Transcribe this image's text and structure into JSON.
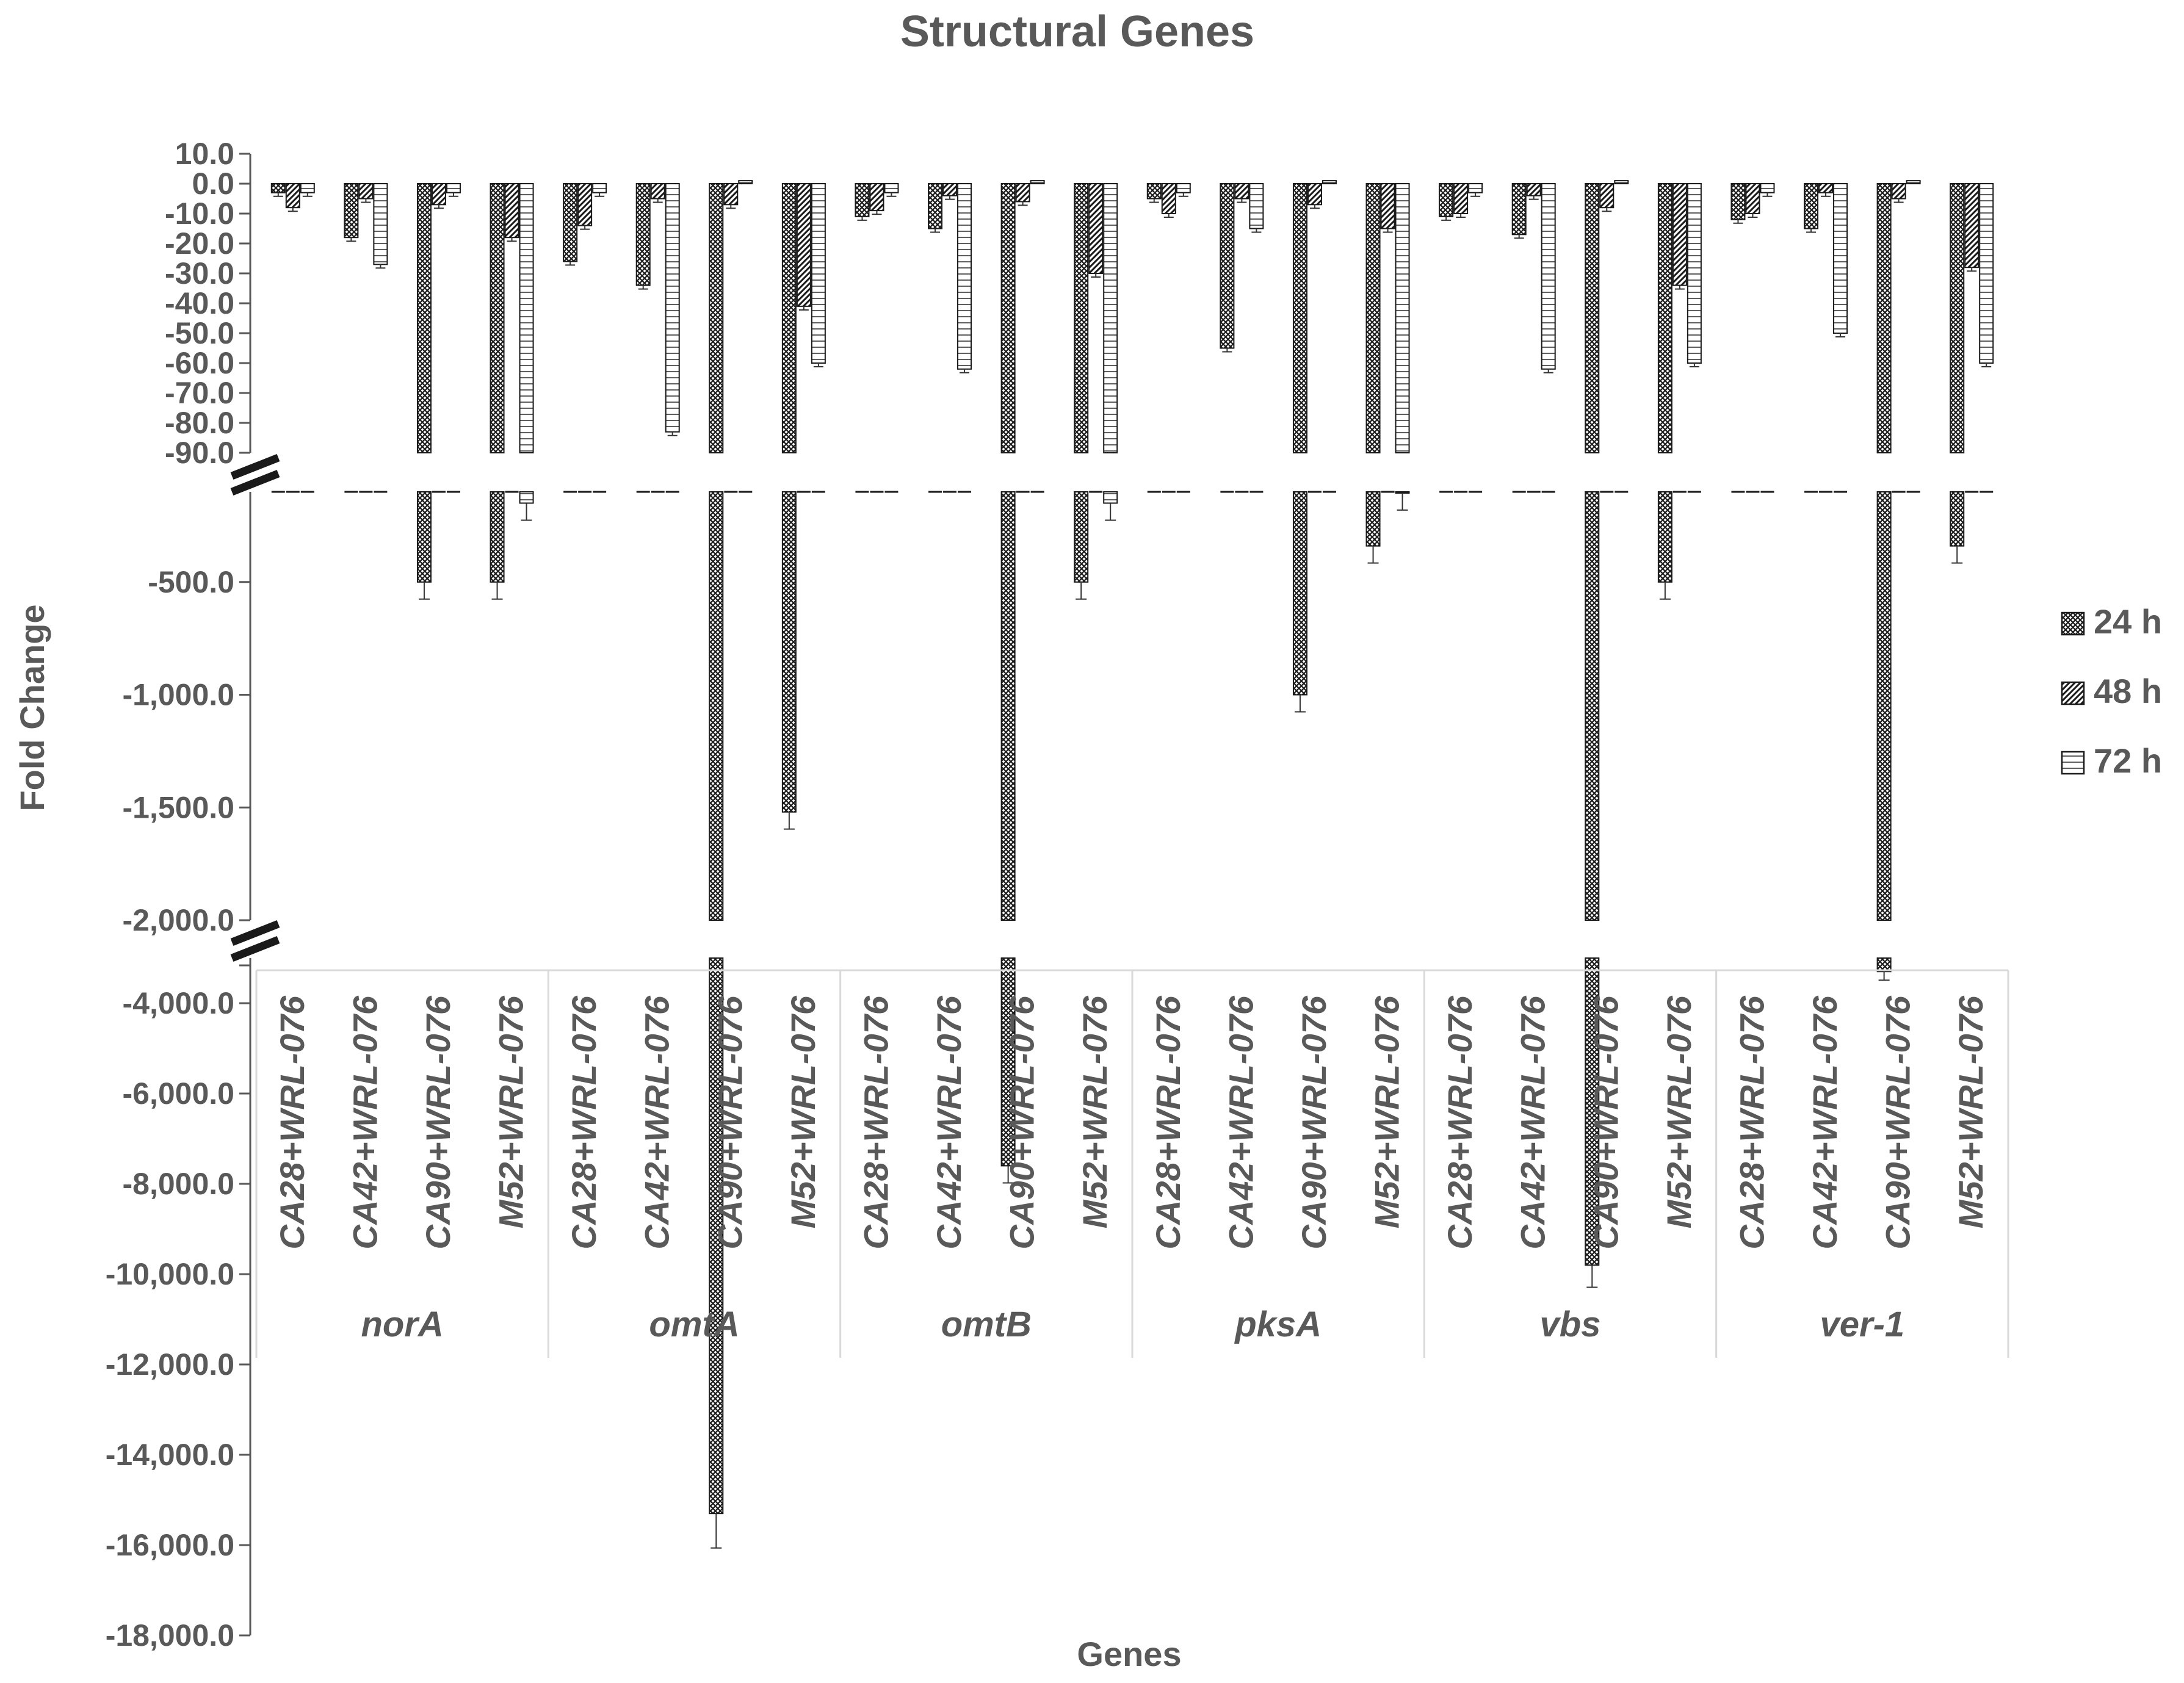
{
  "chart_data": {
    "type": "bar",
    "title": "Structural Genes",
    "xlabel": "Genes",
    "ylabel": "Fold Change",
    "y_axis_broken": true,
    "y_segments": [
      {
        "ylim": [
          -90,
          10
        ],
        "ticks": [
          "10.0",
          "0.0",
          "-10.0",
          "-20.0",
          "-30.0",
          "-40.0",
          "-50.0",
          "-60.0",
          "-70.0",
          "-80.0",
          "-90.0"
        ]
      },
      {
        "ylim": [
          -2000,
          -100
        ],
        "ticks": [
          "-500.0",
          "-1,000.0",
          "-1,500.0",
          "-2,000.0"
        ]
      },
      {
        "ylim": [
          -18000,
          -3000
        ],
        "ticks": [
          "-4,000.0",
          "-6,000.0",
          "-8,000.0",
          "-10,000.0",
          "-12,000.0",
          "-14,000.0",
          "-16,000.0",
          "-18,000.0"
        ]
      }
    ],
    "legend_position": "right",
    "genes": [
      "norA",
      "omtA",
      "omtB",
      "pksA",
      "vbs",
      "ver-1"
    ],
    "treatments": [
      "CA28+WRL-076",
      "CA42+WRL-076",
      "CA90+WRL-076",
      "M52+WRL-076"
    ],
    "series": [
      {
        "name": "24 h",
        "values": [
          -3,
          -18,
          -500,
          -500,
          -26,
          -34,
          -15300,
          -1520,
          -11,
          -15,
          -7600,
          -500,
          -5,
          -55,
          -1000,
          -340,
          -11,
          -17,
          -9800,
          -500,
          -12,
          -15,
          -3300,
          -340
        ]
      },
      {
        "name": "48 h",
        "values": [
          -8,
          -5,
          -7,
          -18,
          -14,
          -5,
          -7,
          -41,
          -9,
          -4,
          -6,
          -30,
          -10,
          -5,
          -7,
          -15,
          -10,
          -4,
          -8,
          -34,
          -10,
          -3,
          -5,
          -28
        ]
      },
      {
        "name": "72 h",
        "values": [
          -3,
          -27,
          -3,
          -150,
          -3,
          -83,
          1,
          -60,
          -3,
          -62,
          1,
          -150,
          -3,
          -15,
          1,
          -105,
          -3,
          -62,
          1,
          -60,
          -3,
          -50,
          1,
          -60
        ]
      }
    ]
  }
}
